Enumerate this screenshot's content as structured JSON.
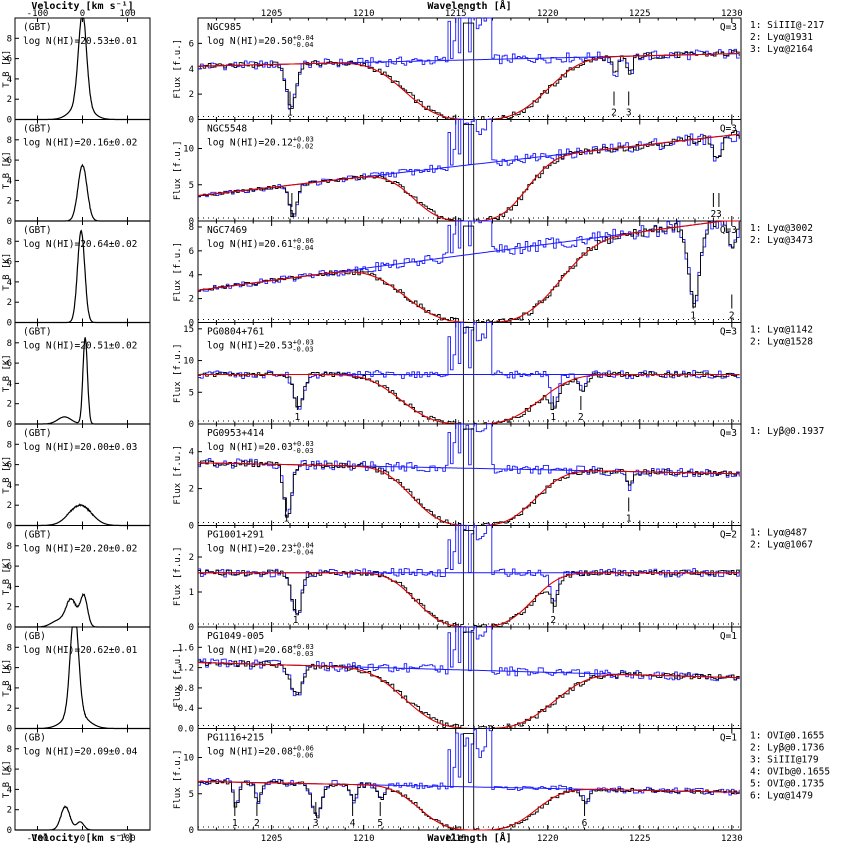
{
  "figure": {
    "left_top_axis_label": "Velocity [km s⁻¹]",
    "left_bottom_axis_label": "Velocity [km s⁻¹]",
    "right_top_axis_label": "Wavelength [Å]",
    "right_bottom_axis_label": "Wavelength [Å]",
    "left_ylabel": "T_B [K]",
    "right_ylabel": "Flux [f.u.]"
  },
  "chart_data": {
    "type": "line",
    "velocity_range": [
      -150,
      150
    ],
    "velocity_ticks": [
      "-100",
      "0",
      "100"
    ],
    "wavelength_range": [
      1201,
      1230.5
    ],
    "wavelength_top_ticks": [
      "1205",
      "1210",
      "1215",
      "1220",
      "1225",
      "1230"
    ],
    "wavelength_bottom_ticks": [
      "1205",
      "1210",
      "1215",
      "1220",
      "1225",
      "1230"
    ],
    "panels": [
      {
        "survey": "(GBT)",
        "nhi_left": "log N(HI)=20.53±0.01",
        "name": "NGC985",
        "nhi_text": "log N(HI)=20.50",
        "err_up": "+0.04",
        "err_dn": "-0.04",
        "quality": "Q=3",
        "tb_max": 10,
        "tb_ticks": [
          "0",
          "2",
          "4",
          "6",
          "8"
        ],
        "tb_profile": [
          {
            "v": 0,
            "a": 9.0,
            "w": 9
          },
          {
            "v": -3,
            "a": 1.5,
            "w": 22
          }
        ],
        "flux_max": 8,
        "flux_ticks": [
          "0",
          "2",
          "4",
          "6"
        ],
        "continuum": [
          4.2,
          5.2
        ],
        "dla_center": 1216.1,
        "dla_width": 4.4,
        "dla_floor": 0,
        "absorbers": [
          {
            "num": "1",
            "lambda": 1206.0,
            "depth": 0.8,
            "width": 0.25
          },
          {
            "num": "2",
            "lambda": 1223.6,
            "depth": 0.3,
            "width": 0.15
          },
          {
            "num": "3",
            "lambda": 1224.4,
            "depth": 0.3,
            "width": 0.15
          }
        ],
        "lines": [
          "1: SiIII@-217",
          "2: Lyα@1931",
          "3: Lyα@2164"
        ]
      },
      {
        "survey": "(GBT)",
        "nhi_left": "log N(HI)=20.16±0.02",
        "name": "NGC5548",
        "nhi_text": "log N(HI)=20.12",
        "err_up": "+0.03",
        "err_dn": "-0.02",
        "quality": "Q=3",
        "tb_max": 10,
        "tb_ticks": [
          "0",
          "2",
          "4",
          "6",
          "8"
        ],
        "tb_profile": [
          {
            "v": 0,
            "a": 5.5,
            "w": 10
          }
        ],
        "flux_max": 14,
        "flux_ticks": [
          "0",
          "5",
          "10"
        ],
        "continuum": [
          3.5,
          12.0
        ],
        "dla_center": 1215.7,
        "dla_width": 3.5,
        "dla_floor": 0,
        "absorbers": [
          {
            "num": "1",
            "lambda": 1206.1,
            "depth": 0.9,
            "width": 0.2
          },
          {
            "num": "2",
            "lambda": 1229.0,
            "depth": 0.2,
            "width": 0.15
          },
          {
            "num": "3",
            "lambda": 1229.3,
            "depth": 0.2,
            "width": 0.15
          }
        ],
        "lines": []
      },
      {
        "survey": "(GBT)",
        "nhi_left": "log N(HI)=20.64±0.02",
        "name": "NGC7469",
        "nhi_text": "log N(HI)=20.61",
        "err_up": "+0.06",
        "err_dn": "-0.04",
        "quality": "Q=3",
        "tb_max": 10,
        "tb_ticks": [
          "0",
          "2",
          "4",
          "6",
          "8"
        ],
        "tb_profile": [
          {
            "v": -3,
            "a": 9.0,
            "w": 8
          }
        ],
        "flux_max": 8.5,
        "flux_ticks": [
          "0",
          "2",
          "4",
          "6",
          "8"
        ],
        "continuum": [
          2.7,
          8.7
        ],
        "dla_center": 1216.3,
        "dla_width": 4.8,
        "dla_floor": 0,
        "absorbers": [
          {
            "num": "1",
            "lambda": 1227.9,
            "depth": 0.8,
            "width": 0.3
          },
          {
            "num": "2",
            "lambda": 1230.0,
            "depth": 0.3,
            "width": 0.2
          }
        ],
        "lines": [
          "1: Lyα@3002",
          "2: Lyα@3473"
        ]
      },
      {
        "survey": "(GBT)",
        "nhi_left": "log N(HI)=20.51±0.02",
        "name": "PG0804+761",
        "nhi_text": "log N(HI)=20.53",
        "err_up": "+0.03",
        "err_dn": "-0.03",
        "quality": "Q=3",
        "tb_max": 10,
        "tb_ticks": [
          "0",
          "2",
          "4",
          "6",
          "8"
        ],
        "tb_profile": [
          {
            "v": 6,
            "a": 8.5,
            "w": 5
          },
          {
            "v": -40,
            "a": 0.7,
            "w": 15
          }
        ],
        "flux_max": 16,
        "flux_ticks": [
          "0",
          "5",
          "10",
          "15"
        ],
        "continuum": [
          7.8,
          7.8
        ],
        "dla_center": 1215.8,
        "dla_width": 4.3,
        "dla_floor": 0,
        "absorbers": [
          {
            "num": "1",
            "lambda": 1206.4,
            "depth": 0.7,
            "width": 0.25
          },
          {
            "num": "1",
            "lambda": 1220.3,
            "depth": 0.6,
            "width": 0.2
          },
          {
            "num": "2",
            "lambda": 1221.8,
            "depth": 0.3,
            "width": 0.2
          }
        ],
        "lines": [
          "1: Lyα@1142",
          "2: Lyα@1528"
        ]
      },
      {
        "survey": "(GBT)",
        "nhi_left": "log N(HI)=20.00±0.03",
        "name": "PG0953+414",
        "nhi_text": "log N(HI)=20.03",
        "err_up": "+0.03",
        "err_dn": "-0.03",
        "quality": "Q=3",
        "tb_max": 10,
        "tb_ticks": [
          "0",
          "2",
          "4",
          "6",
          "8"
        ],
        "tb_profile": [
          {
            "v": -5,
            "a": 2.0,
            "w": 25
          }
        ],
        "flux_max": 5.5,
        "flux_ticks": [
          "0",
          "2",
          "4"
        ],
        "continuum": [
          3.4,
          2.8
        ],
        "dla_center": 1216.0,
        "dla_width": 3.8,
        "dla_floor": 0,
        "absorbers": [
          {
            "num": "1",
            "lambda": 1205.8,
            "depth": 0.9,
            "width": 0.2
          },
          {
            "num": "1",
            "lambda": 1224.4,
            "depth": 0.3,
            "width": 0.15
          }
        ],
        "lines": [
          "1: Lyβ@0.1937"
        ]
      },
      {
        "survey": "(GBT)",
        "nhi_left": "log N(HI)=20.20±0.02",
        "name": "PG1001+291",
        "nhi_text": "log N(HI)=20.23",
        "err_up": "+0.04",
        "err_dn": "-0.04",
        "quality": "Q=2",
        "tb_max": 10,
        "tb_ticks": [
          "0",
          "2",
          "4",
          "6",
          "8"
        ],
        "tb_profile": [
          {
            "v": -25,
            "a": 2.7,
            "w": 12
          },
          {
            "v": 3,
            "a": 3.0,
            "w": 8
          },
          {
            "v": -55,
            "a": 0.6,
            "w": 15
          }
        ],
        "flux_max": 2.9,
        "flux_ticks": [
          "0",
          "1",
          "2"
        ],
        "continuum": [
          1.55,
          1.55
        ],
        "dla_center": 1216.0,
        "dla_width": 3.6,
        "dla_floor": 0,
        "absorbers": [
          {
            "num": "1",
            "lambda": 1206.3,
            "depth": 0.8,
            "width": 0.25
          },
          {
            "num": "2",
            "lambda": 1220.3,
            "depth": 0.5,
            "width": 0.2
          }
        ],
        "lines": [
          "1: Lyα@487",
          "2: Lyα@1067"
        ]
      },
      {
        "survey": "(GB)",
        "nhi_left": "log N(HI)=20.62±0.01",
        "name": "PG1049-005",
        "nhi_text": "log N(HI)=20.68",
        "err_up": "+0.03",
        "err_dn": "-0.03",
        "quality": "Q=1",
        "tb_max": 10,
        "tb_ticks": [
          "0",
          "2",
          "4",
          "6",
          "8"
        ],
        "tb_profile": [
          {
            "v": -18,
            "a": 10.2,
            "w": 9
          },
          {
            "v": -15,
            "a": 1.5,
            "w": 25
          }
        ],
        "flux_max": 2.0,
        "flux_ticks": [
          "0.0",
          "0.4",
          "0.8",
          "1.2",
          "1.6"
        ],
        "continuum": [
          1.3,
          1.0
        ],
        "dla_center": 1216.3,
        "dla_width": 4.6,
        "dla_floor": 0,
        "absorbers": [
          {
            "num": "",
            "lambda": 1206.3,
            "depth": 0.5,
            "width": 0.3
          }
        ],
        "lines": []
      },
      {
        "survey": "(GB)",
        "nhi_left": "log N(HI)=20.09±0.04",
        "name": "PG1116+215",
        "nhi_text": "log N(HI)=20.08",
        "err_up": "+0.06",
        "err_dn": "-0.06",
        "quality": "Q=1",
        "tb_max": 10,
        "tb_ticks": [
          "0",
          "2",
          "4",
          "6",
          "8"
        ],
        "tb_profile": [
          {
            "v": -38,
            "a": 2.3,
            "w": 10
          },
          {
            "v": -5,
            "a": 0.8,
            "w": 8
          }
        ],
        "flux_max": 14,
        "flux_ticks": [
          "0",
          "5",
          "10"
        ],
        "continuum": [
          6.7,
          5.2
        ],
        "dla_center": 1216.2,
        "dla_width": 3.6,
        "dla_floor": 0,
        "absorbers": [
          {
            "num": "1",
            "lambda": 1203.0,
            "depth": 0.5,
            "width": 0.15
          },
          {
            "num": "2",
            "lambda": 1204.2,
            "depth": 0.4,
            "width": 0.15
          },
          {
            "num": "3",
            "lambda": 1207.4,
            "depth": 0.7,
            "width": 0.25
          },
          {
            "num": "4",
            "lambda": 1209.4,
            "depth": 0.4,
            "width": 0.15
          },
          {
            "num": "5",
            "lambda": 1210.9,
            "depth": 0.3,
            "width": 0.15
          },
          {
            "num": "6",
            "lambda": 1222.0,
            "depth": 0.3,
            "width": 0.2
          }
        ],
        "lines": [
          "1: OVI@0.1655",
          "2: Lyβ@0.1736",
          "3: SiIII@179",
          "4: OVIb@0.1655",
          "5: OVI@0.1735",
          "6: Lyα@1479"
        ]
      }
    ]
  }
}
